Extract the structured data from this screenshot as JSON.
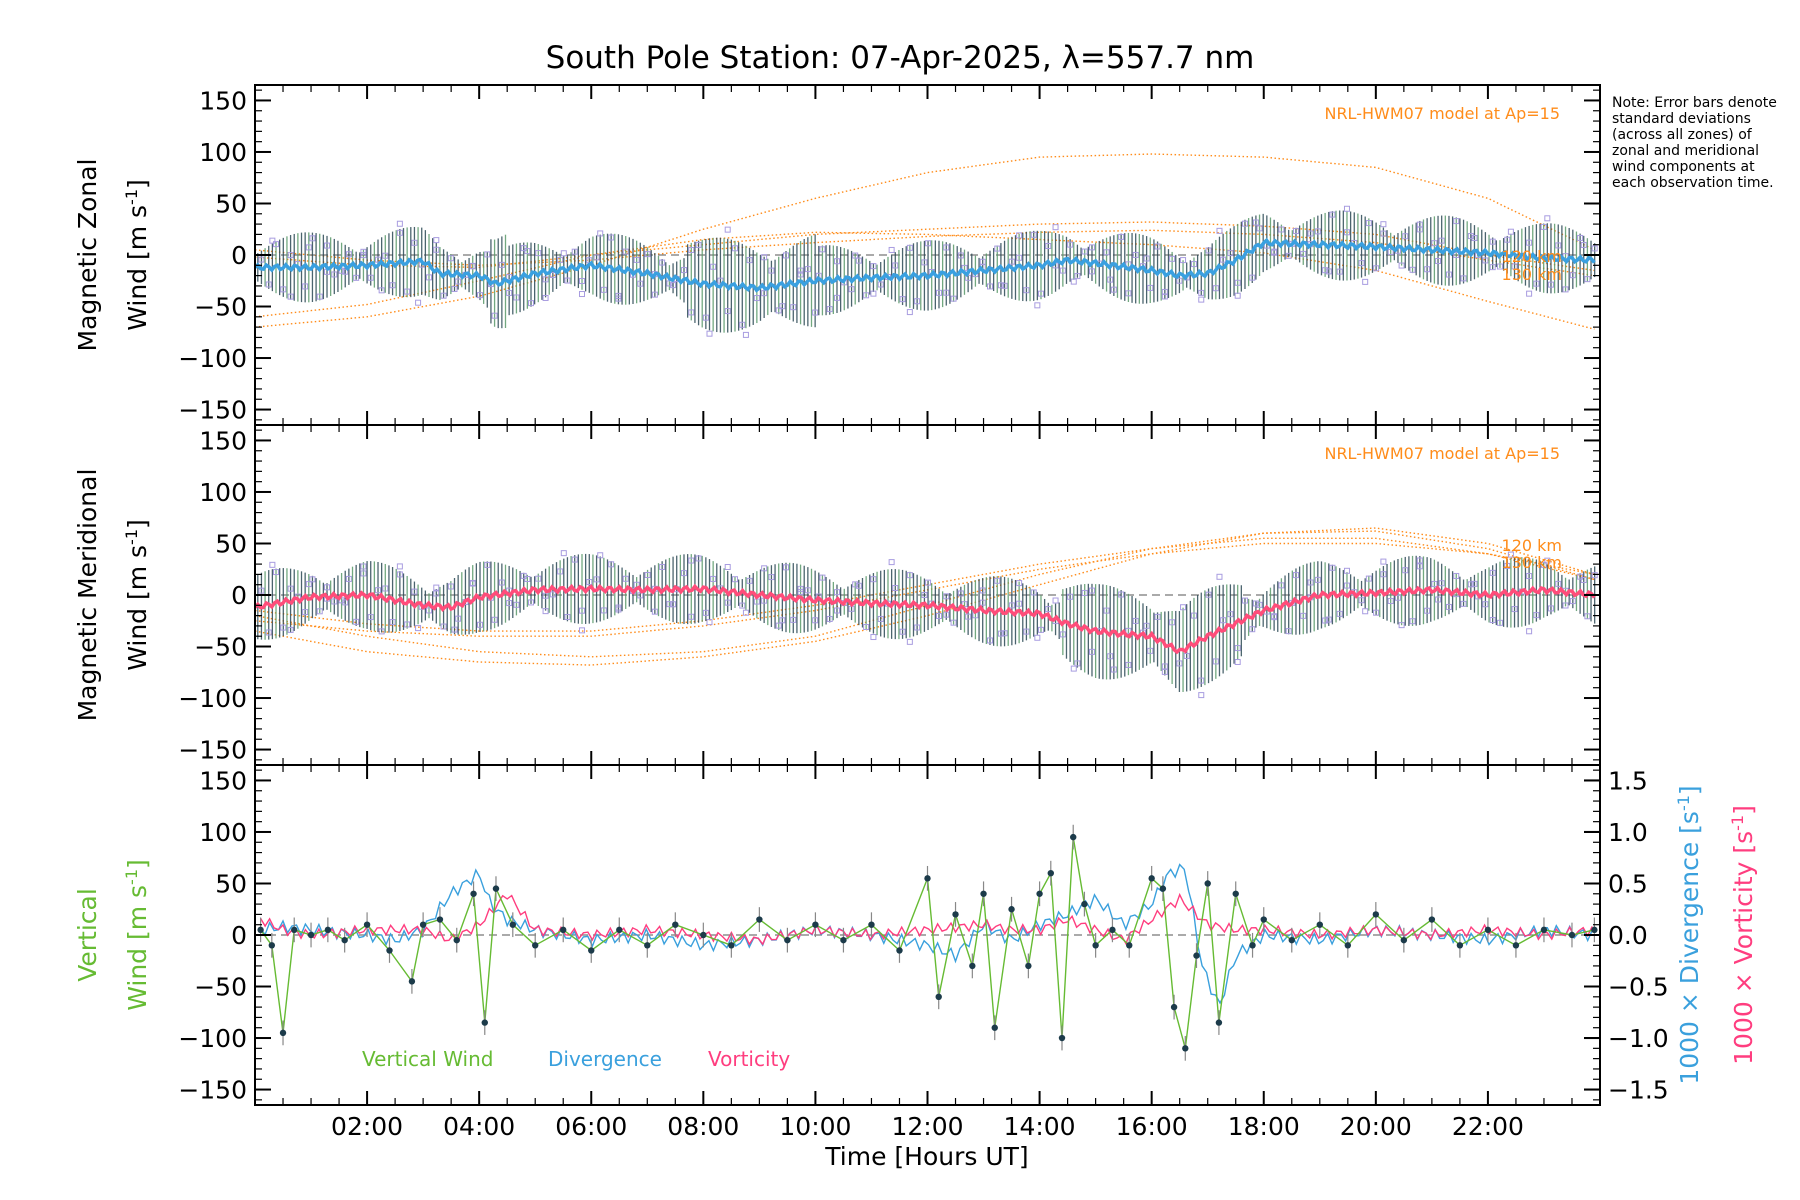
{
  "title": "South Pole Station: 07-Apr-2025, λ=557.7 nm",
  "note": "Note: Error bars denote standard deviations (across all zones) of zonal and meridional wind components at each observation time.",
  "colors": {
    "model": "#ff8c1a",
    "zonal_line": "#3aa0e0",
    "zonal_early": "#1e3cff",
    "meridional_line": "#ff4d7a",
    "vertical": "#66bb33",
    "divergence": "#3aa0dd",
    "vorticity": "#ff3d7f",
    "samples": "#a89ce0",
    "errbar": "#2c4a55"
  },
  "chart_data": [
    {
      "type": "line",
      "name": "magnetic-zonal",
      "ylabel_line1": "Magnetic Zonal",
      "ylabel_line2": "Wind [m s",
      "ylabel_exp": "-1",
      "ylabel_close": "]",
      "ylim": [
        -165,
        165
      ],
      "yticks": [
        -150,
        -100,
        -50,
        0,
        50,
        100,
        150
      ],
      "model_label": "NRL-HWM07 model at Ap=15",
      "altitude_labels": [
        "120 km",
        "130 km"
      ],
      "x_hours": [
        0,
        1,
        2,
        3,
        3.3,
        4,
        4.3,
        5,
        6,
        7,
        8,
        9,
        10,
        11,
        12,
        13,
        14,
        14.5,
        15,
        16,
        16.5,
        17,
        17.5,
        18,
        19,
        20,
        21,
        22,
        23,
        23.9
      ],
      "wind": [
        -12,
        -12,
        -10,
        -6,
        -18,
        -20,
        -28,
        -18,
        -10,
        -18,
        -28,
        -32,
        -25,
        -22,
        -20,
        -15,
        -10,
        -5,
        -8,
        -15,
        -20,
        -18,
        -5,
        12,
        10,
        8,
        5,
        2,
        -3,
        -5
      ],
      "model_curves": [
        {
          "x": [
            0,
            2,
            4,
            6,
            8,
            10,
            12,
            14,
            16,
            18,
            20,
            22,
            23.9
          ],
          "y": [
            -70,
            -60,
            -40,
            -10,
            25,
            55,
            80,
            95,
            98,
            95,
            85,
            55,
            5
          ]
        },
        {
          "x": [
            0,
            2,
            4,
            6,
            8,
            10,
            12,
            14,
            16,
            18,
            20,
            22,
            23.9
          ],
          "y": [
            -60,
            -48,
            -25,
            0,
            15,
            22,
            20,
            15,
            10,
            2,
            -15,
            -45,
            -72
          ]
        },
        {
          "x": [
            0,
            2,
            4,
            6,
            8,
            10,
            12,
            14,
            16,
            18,
            20,
            22,
            23.9
          ],
          "y": [
            -2,
            -10,
            -12,
            0,
            10,
            20,
            25,
            30,
            32,
            28,
            20,
            0,
            -15
          ]
        },
        {
          "x": [
            0,
            2,
            4,
            6,
            8,
            10,
            12,
            14,
            16,
            18,
            20,
            22,
            23.9
          ],
          "y": [
            5,
            -5,
            -10,
            -5,
            5,
            12,
            18,
            22,
            24,
            20,
            12,
            -5,
            -20
          ]
        }
      ]
    },
    {
      "type": "line",
      "name": "magnetic-meridional",
      "ylabel_line1": "Magnetic Meridional",
      "ylabel_line2": "Wind [m s",
      "ylabel_exp": "-1",
      "ylabel_close": "]",
      "ylim": [
        -165,
        165
      ],
      "yticks": [
        -150,
        -100,
        -50,
        0,
        50,
        100,
        150
      ],
      "model_label": "NRL-HWM07 model at Ap=15",
      "altitude_labels": [
        "120 km",
        "130 km"
      ],
      "x_hours": [
        0,
        1,
        2,
        3,
        3.5,
        4,
        5,
        6,
        7,
        8,
        9,
        10,
        11,
        12,
        13,
        14,
        14.5,
        15,
        15.5,
        16,
        16.5,
        17,
        18,
        19,
        20,
        21,
        22,
        23,
        23.9
      ],
      "wind": [
        -12,
        -2,
        0,
        -10,
        -12,
        -2,
        5,
        6,
        5,
        6,
        0,
        -5,
        -8,
        -10,
        -15,
        -18,
        -28,
        -35,
        -38,
        -40,
        -55,
        -40,
        -15,
        0,
        2,
        5,
        0,
        5,
        0
      ],
      "model_curves": [
        {
          "x": [
            0,
            2,
            4,
            6,
            8,
            10,
            12,
            14,
            16,
            18,
            20,
            22,
            23.9
          ],
          "y": [
            -35,
            -55,
            -65,
            -68,
            -60,
            -45,
            -20,
            10,
            40,
            60,
            65,
            50,
            20
          ]
        },
        {
          "x": [
            0,
            2,
            4,
            6,
            8,
            10,
            12,
            14,
            16,
            18,
            20,
            22,
            23.9
          ],
          "y": [
            -20,
            -40,
            -55,
            -60,
            -55,
            -40,
            -10,
            20,
            45,
            60,
            62,
            45,
            15
          ]
        },
        {
          "x": [
            0,
            2,
            4,
            6,
            8,
            10,
            12,
            14,
            16,
            18,
            20,
            22,
            23.9
          ],
          "y": [
            -25,
            -35,
            -40,
            -40,
            -30,
            -15,
            5,
            25,
            40,
            50,
            50,
            40,
            20
          ]
        },
        {
          "x": [
            0,
            2,
            4,
            6,
            8,
            10,
            12,
            14,
            16,
            18,
            20,
            22,
            23.9
          ],
          "y": [
            -15,
            -28,
            -35,
            -35,
            -25,
            -10,
            10,
            30,
            45,
            55,
            55,
            40,
            15
          ]
        }
      ]
    },
    {
      "type": "line",
      "name": "vertical-wind-divergence-vorticity",
      "ylabel_line1": "Vertical",
      "ylabel_line2": "Wind [m s",
      "ylabel_exp": "-1",
      "ylabel_close": "]",
      "ylim": [
        -165,
        165
      ],
      "yticks": [
        -150,
        -100,
        -50,
        0,
        50,
        100,
        150
      ],
      "right_ylim": [
        -1.65,
        1.65
      ],
      "right_ticks": [
        -1.5,
        -1.0,
        -0.5,
        0.0,
        0.5,
        1.0,
        1.5
      ],
      "right_tick_labels": [
        "-1.5",
        "-1.0",
        "-0.5",
        "0.0",
        "0.5",
        "1.0",
        "1.5"
      ],
      "right_label_div": "1000 × Divergence [s",
      "right_label_vort": "1000 × Vorticity [s",
      "right_label_exp": "-1",
      "right_label_close": "]",
      "legend": [
        "Vertical Wind",
        "Divergence",
        "Vorticity"
      ],
      "vertical": {
        "x": [
          0.1,
          0.3,
          0.5,
          0.7,
          1.0,
          1.3,
          1.6,
          2.0,
          2.4,
          2.8,
          3.0,
          3.3,
          3.6,
          3.9,
          4.1,
          4.3,
          4.6,
          5.0,
          5.5,
          6.0,
          6.5,
          7.0,
          7.5,
          8.0,
          8.5,
          9.0,
          9.5,
          10.0,
          10.5,
          11.0,
          11.5,
          12.0,
          12.2,
          12.5,
          12.8,
          13.0,
          13.2,
          13.5,
          13.8,
          14.0,
          14.2,
          14.4,
          14.6,
          14.8,
          15.0,
          15.3,
          15.6,
          16.0,
          16.2,
          16.4,
          16.6,
          16.8,
          17.0,
          17.2,
          17.5,
          17.8,
          18.0,
          18.5,
          19.0,
          19.5,
          20.0,
          20.5,
          21.0,
          21.5,
          22.0,
          22.5,
          23.0,
          23.5,
          23.9
        ],
        "y": [
          5,
          -10,
          -95,
          5,
          0,
          5,
          -5,
          10,
          -15,
          -45,
          10,
          15,
          -5,
          40,
          -85,
          45,
          10,
          -10,
          5,
          -15,
          5,
          -10,
          10,
          0,
          -10,
          15,
          -5,
          10,
          -5,
          10,
          -15,
          55,
          -60,
          20,
          -30,
          40,
          -90,
          25,
          -30,
          40,
          60,
          -100,
          95,
          30,
          -10,
          5,
          -10,
          55,
          45,
          -70,
          -110,
          -20,
          50,
          -85,
          40,
          -10,
          15,
          -5,
          10,
          -10,
          20,
          -5,
          15,
          -10,
          5,
          -10,
          5,
          0,
          5
        ]
      },
      "divergence": {
        "x": [
          0.1,
          0.5,
          1.0,
          1.5,
          2.0,
          2.5,
          3.0,
          3.5,
          4.0,
          4.2,
          4.5,
          5.0,
          6.0,
          7.0,
          8.0,
          9.0,
          10.0,
          11.0,
          12.0,
          12.5,
          13.0,
          13.5,
          14.0,
          14.5,
          15.0,
          15.5,
          16.0,
          16.3,
          16.6,
          16.9,
          17.2,
          17.5,
          18.0,
          19.0,
          20.0,
          21.0,
          22.0,
          23.0,
          23.9
        ],
        "y": [
          0.05,
          0.08,
          0.05,
          0.02,
          0.0,
          -0.05,
          0.05,
          0.4,
          0.6,
          0.3,
          0.15,
          0.05,
          -0.05,
          0.0,
          -0.1,
          -0.05,
          0.05,
          0.0,
          -0.1,
          -0.2,
          0.1,
          -0.05,
          0.1,
          0.2,
          0.35,
          0.1,
          0.3,
          0.6,
          0.65,
          -0.3,
          -0.7,
          -0.2,
          0.0,
          -0.05,
          0.05,
          0.0,
          -0.05,
          0.05,
          0.0
        ]
      },
      "vorticity": {
        "x": [
          0.1,
          0.5,
          1.0,
          2.0,
          3.0,
          3.5,
          4.0,
          4.5,
          5.0,
          6.0,
          7.0,
          8.0,
          9.0,
          10.0,
          11.0,
          12.0,
          13.0,
          13.5,
          14.0,
          14.5,
          15.0,
          15.5,
          16.0,
          16.5,
          17.0,
          17.5,
          18.0,
          19.0,
          20.0,
          21.0,
          22.0,
          23.0,
          23.9
        ],
        "y": [
          0.15,
          0.05,
          0.0,
          0.05,
          0.05,
          -0.05,
          0.1,
          0.4,
          0.05,
          0.0,
          0.05,
          0.0,
          -0.05,
          0.05,
          0.0,
          0.05,
          0.1,
          0.05,
          0.05,
          0.15,
          0.05,
          -0.05,
          0.15,
          0.35,
          0.1,
          0.05,
          0.05,
          0.0,
          0.05,
          0.0,
          0.05,
          0.0,
          0.05
        ]
      }
    }
  ],
  "x_axis": {
    "label": "Time [Hours UT]",
    "range": [
      0,
      24
    ],
    "ticks": [
      2,
      4,
      6,
      8,
      10,
      12,
      14,
      16,
      18,
      20,
      22
    ],
    "tick_labels": [
      "02:00",
      "04:00",
      "06:00",
      "08:00",
      "10:00",
      "12:00",
      "14:00",
      "16:00",
      "18:00",
      "20:00",
      "22:00"
    ]
  }
}
